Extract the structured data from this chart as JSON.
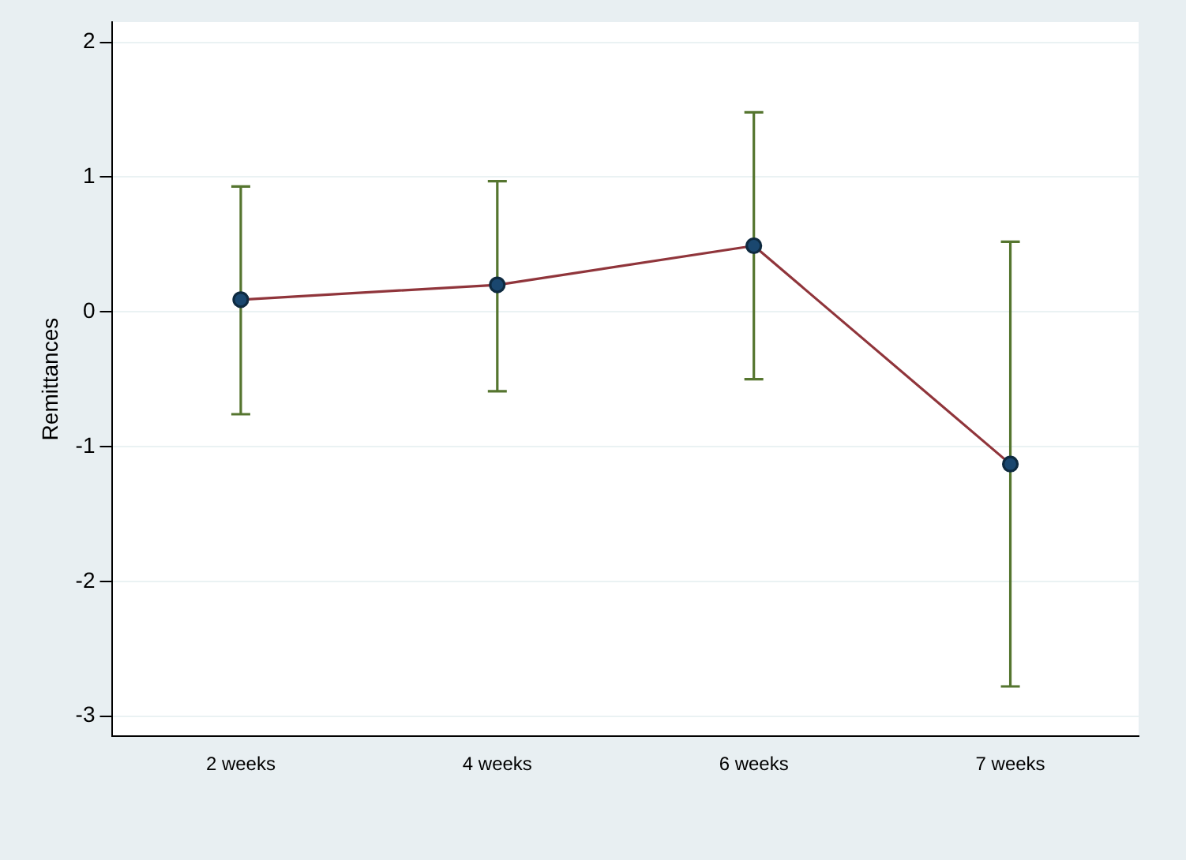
{
  "chart_data": {
    "type": "line",
    "ylabel": "Remittances",
    "categories": [
      "2 weeks",
      "4 weeks",
      "6 weeks",
      "7 weeks"
    ],
    "series": [
      {
        "color": "#90353b",
        "values": [
          0.09,
          0.2,
          0.49,
          -1.13
        ],
        "errors": [
          [
            -0.76,
            0.93
          ],
          [
            -0.59,
            0.97
          ],
          [
            -0.5,
            1.48
          ],
          [
            -2.78,
            0.52
          ]
        ]
      }
    ],
    "ylim": [
      -3.15,
      2.15
    ],
    "yticks": [
      -3,
      -2,
      -1,
      0,
      1,
      2
    ],
    "grid": "y",
    "legend": false,
    "marker": "circle",
    "line_style": "solid"
  }
}
